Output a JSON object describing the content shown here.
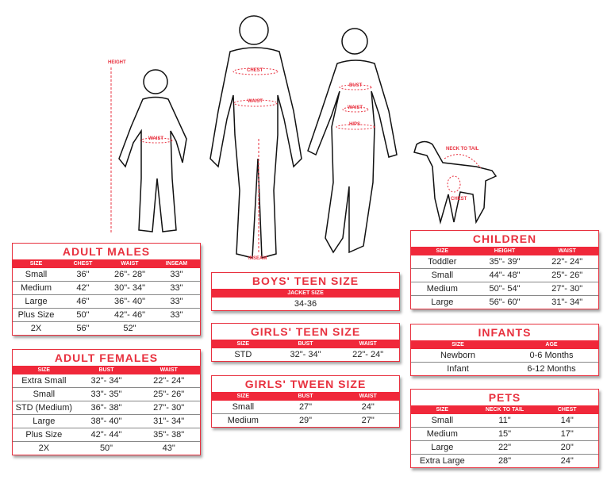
{
  "figures": {
    "child": [
      "HEIGHT",
      "WAIST"
    ],
    "man": [
      "CHEST",
      "WAIST",
      "INSEAM"
    ],
    "woman": [
      "BUST",
      "WAIST",
      "HIPS"
    ],
    "dog": [
      "NECK TO TAIL",
      "CHEST"
    ]
  },
  "accent": "#e8313f",
  "tables": [
    {
      "id": "adult-males",
      "title": "ADULT MALES",
      "headers": [
        "SIZE",
        "CHEST",
        "WAIST",
        "INSEAM"
      ],
      "rows": [
        [
          "Small",
          "36\"",
          "26\"- 28\"",
          "33\""
        ],
        [
          "Medium",
          "42\"",
          "30\"- 34\"",
          "33\""
        ],
        [
          "Large",
          "46\"",
          "36\"- 40\"",
          "33\""
        ],
        [
          "Plus Size",
          "50\"",
          "42\"- 46\"",
          "33\""
        ],
        [
          "2X",
          "56\"",
          "52\"",
          ""
        ]
      ]
    },
    {
      "id": "adult-females",
      "title": "ADULT FEMALES",
      "headers": [
        "SIZE",
        "BUST",
        "WAIST"
      ],
      "rows": [
        [
          "Extra Small",
          "32\"- 34\"",
          "22\"- 24\""
        ],
        [
          "Small",
          "33\"- 35\"",
          "25\"- 26\""
        ],
        [
          "STD (Medium)",
          "36\"- 38\"",
          "27\"- 30\""
        ],
        [
          "Large",
          "38\"- 40\"",
          "31\"- 34\""
        ],
        [
          "Plus Size",
          "42\"- 44\"",
          "35\"- 38\""
        ],
        [
          "2X",
          "50\"",
          "43\""
        ]
      ]
    },
    {
      "id": "boys-teen",
      "title": "BOYS' TEEN SIZE",
      "headers": [
        "JACKET SIZE"
      ],
      "rows": [
        [
          "34-36"
        ]
      ]
    },
    {
      "id": "girls-teen",
      "title": "GIRLS' TEEN SIZE",
      "headers": [
        "SIZE",
        "BUST",
        "WAIST"
      ],
      "rows": [
        [
          "STD",
          "32\"- 34\"",
          "22\"- 24\""
        ]
      ]
    },
    {
      "id": "girls-tween",
      "title": "GIRLS' TWEEN SIZE",
      "headers": [
        "SIZE",
        "BUST",
        "WAIST"
      ],
      "rows": [
        [
          "Small",
          "27\"",
          "24\""
        ],
        [
          "Medium",
          "29\"",
          "27\""
        ]
      ]
    },
    {
      "id": "children",
      "title": "CHILDREN",
      "headers": [
        "SIZE",
        "HEIGHT",
        "WAIST"
      ],
      "rows": [
        [
          "Toddler",
          "35\"- 39\"",
          "22\"- 24\""
        ],
        [
          "Small",
          "44\"- 48\"",
          "25\"- 26\""
        ],
        [
          "Medium",
          "50\"- 54\"",
          "27\"- 30\""
        ],
        [
          "Large",
          "56\"- 60\"",
          "31\"- 34\""
        ]
      ]
    },
    {
      "id": "infants",
      "title": "INFANTS",
      "headers": [
        "SIZE",
        "AGE"
      ],
      "rows": [
        [
          "Newborn",
          "0-6 Months"
        ],
        [
          "Infant",
          "6-12 Months"
        ]
      ]
    },
    {
      "id": "pets",
      "title": "PETS",
      "headers": [
        "SIZE",
        "NECK TO TAIL",
        "CHEST"
      ],
      "rows": [
        [
          "Small",
          "11\"",
          "14\""
        ],
        [
          "Medium",
          "15\"",
          "17\""
        ],
        [
          "Large",
          "22\"",
          "20\""
        ],
        [
          "Extra Large",
          "28\"",
          "24\""
        ]
      ]
    }
  ]
}
